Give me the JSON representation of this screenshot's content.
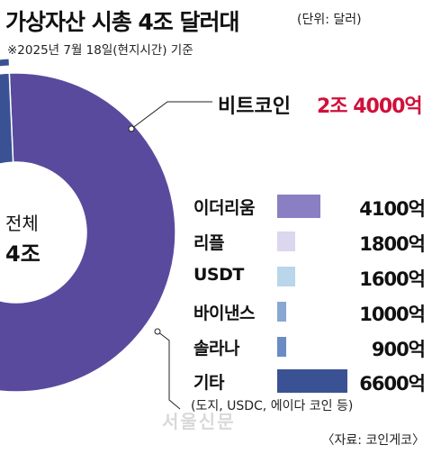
{
  "header": {
    "title": "가상자산 시총 4조 달러대",
    "unit": "(단위: 달러)",
    "date_note": "※2025년 7월 18일(현지시간) 기준"
  },
  "center": {
    "label": "전체",
    "total": "4조"
  },
  "footer": {
    "note": "(도지, USDC, 에이다 코인 등)",
    "source": "〈자료: 코인게코〉",
    "watermark": "서울신문"
  },
  "colors": {
    "bitcoin": "#5a4a9e",
    "ethereum": "#8a7fc2",
    "ripple": "#dcd6ee",
    "usdt": "#b9d6ea",
    "binance": "#8aa6d2",
    "solana": "#6a8bc4",
    "others": "#3a5293",
    "highlight": "#d0103a"
  },
  "chart_data": {
    "type": "pie",
    "title": "가상자산 시총 4조 달러대",
    "unit": "달러",
    "total": 40000,
    "total_label": "4조",
    "series": [
      {
        "name": "비트코인",
        "label": "2조 4000억",
        "value": 24000
      },
      {
        "name": "이더리움",
        "label": "4100억",
        "value": 4100
      },
      {
        "name": "리플",
        "label": "1800억",
        "value": 1800
      },
      {
        "name": "USDT",
        "label": "1600억",
        "value": 1600
      },
      {
        "name": "바이낸스",
        "label": "1000억",
        "value": 1000
      },
      {
        "name": "솔라나",
        "label": "900억",
        "value": 900
      },
      {
        "name": "기타",
        "label": "6600억",
        "value": 6600
      }
    ]
  }
}
